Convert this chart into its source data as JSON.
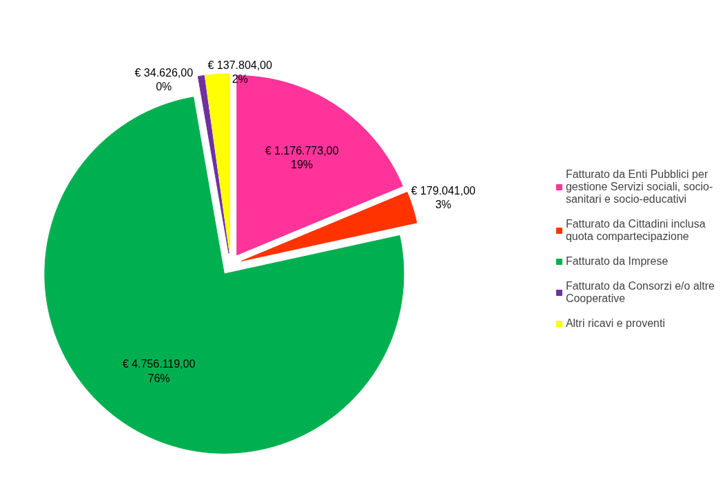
{
  "chart_data": {
    "type": "pie",
    "categories": [
      "Fatturato da Enti Pubblici per gestione Servizi sociali, socio-sanitari e socio-educativi",
      "Fatturato da Cittadini inclusa quota compartecipazione",
      "Fatturato da Imprese",
      "Fatturato da Consorzi e/o altre Cooperative",
      "Altri ricavi e proventi"
    ],
    "values": [
      1176773,
      179041,
      4756119,
      34626,
      137804
    ],
    "colors": [
      "#ff3399",
      "#ff3300",
      "#00b050",
      "#7030a0",
      "#ffff00"
    ],
    "value_labels": [
      "€ 1.176.773,00\n19%",
      "€ 179.041,00\n3%",
      "€ 4.756.119,00\n76%",
      "€ 34.626,00\n0%",
      "€ 137.804,00\n2%"
    ],
    "legend": "right"
  }
}
